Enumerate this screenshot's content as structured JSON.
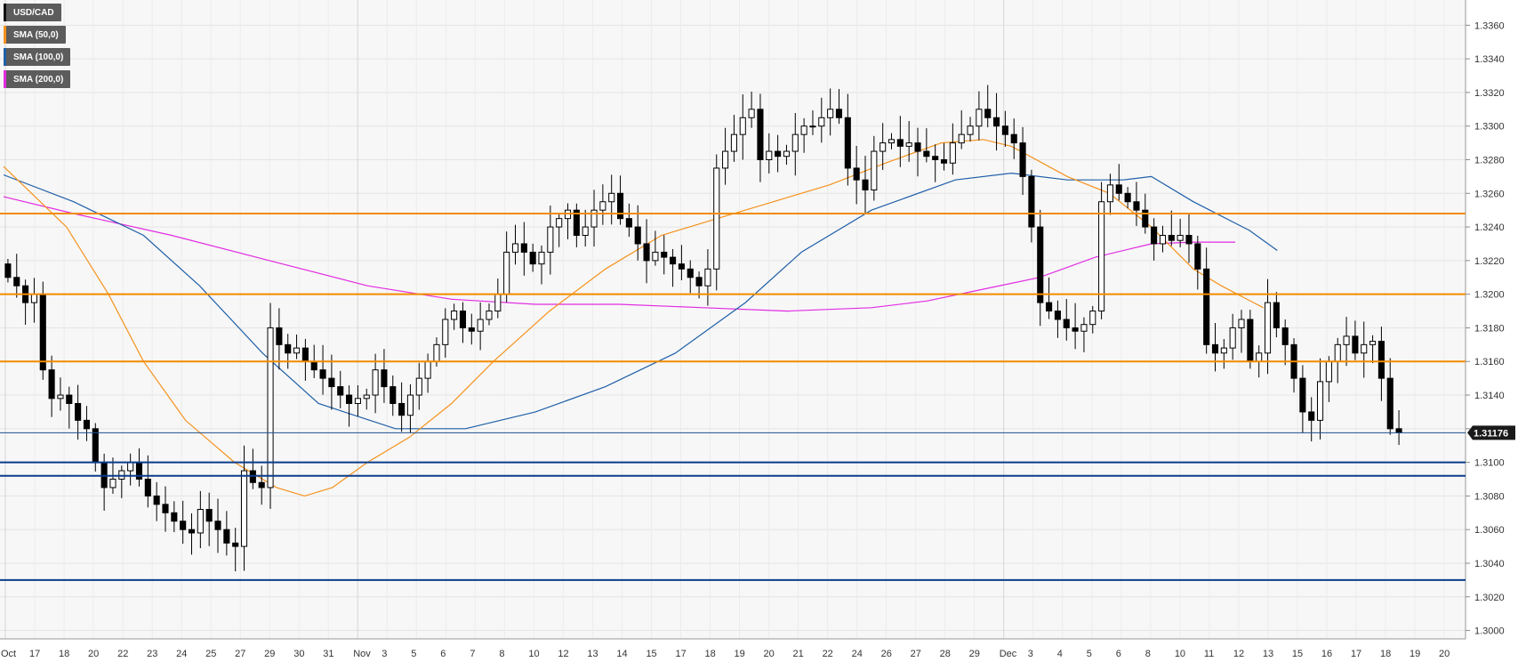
{
  "legend": [
    {
      "label": "USD/CAD",
      "color": "#000000"
    },
    {
      "label": "SMA (50,0)",
      "color": "#f5921e"
    },
    {
      "label": "SMA (100,0)",
      "color": "#1f5fa8"
    },
    {
      "label": "SMA (200,0)",
      "color": "#e22be2"
    }
  ],
  "current_price_label": "1.31176",
  "chart_data": {
    "type": "candlestick",
    "symbol": "USD/CAD",
    "ylim": [
      1.2995,
      1.3375
    ],
    "y_ticks": [
      "1.3000",
      "1.3020",
      "1.3040",
      "1.3060",
      "1.3080",
      "1.3100",
      "1.3120",
      "1.3140",
      "1.3160",
      "1.3180",
      "1.3200",
      "1.3220",
      "1.3240",
      "1.3260",
      "1.3280",
      "1.3300",
      "1.3320",
      "1.3340",
      "1.3360"
    ],
    "x_ticks": [
      "Oct",
      "17",
      "18",
      "20",
      "22",
      "23",
      "24",
      "25",
      "27",
      "29",
      "30",
      "31",
      "Nov",
      "3",
      "5",
      "6",
      "7",
      "8",
      "10",
      "12",
      "13",
      "14",
      "15",
      "17",
      "18",
      "19",
      "20",
      "21",
      "22",
      "24",
      "26",
      "27",
      "28",
      "29",
      "Dec",
      "3",
      "4",
      "5",
      "6",
      "8",
      "10",
      "11",
      "12",
      "13",
      "15",
      "16",
      "17",
      "18",
      "19",
      "20"
    ],
    "horizontal_levels": {
      "resistance": [
        1.3248,
        1.32,
        1.316
      ],
      "support": [
        1.31,
        1.3092,
        1.303
      ]
    },
    "current_price": 1.31176,
    "closes": [
      1.321,
      1.3205,
      1.3195,
      1.32,
      1.3155,
      1.3138,
      1.314,
      1.3135,
      1.3125,
      1.312,
      1.31,
      1.3085,
      1.309,
      1.3095,
      1.31,
      1.309,
      1.308,
      1.3075,
      1.307,
      1.3065,
      1.306,
      1.3058,
      1.3072,
      1.3065,
      1.306,
      1.3052,
      1.305,
      1.3095,
      1.3088,
      1.3085,
      1.318,
      1.317,
      1.3165,
      1.3168,
      1.316,
      1.3155,
      1.315,
      1.3145,
      1.314,
      1.3135,
      1.3138,
      1.314,
      1.3155,
      1.3145,
      1.3135,
      1.3128,
      1.314,
      1.315,
      1.316,
      1.317,
      1.3185,
      1.319,
      1.318,
      1.3178,
      1.3185,
      1.319,
      1.32,
      1.3225,
      1.323,
      1.3225,
      1.3218,
      1.3225,
      1.324,
      1.3245,
      1.325,
      1.3235,
      1.324,
      1.325,
      1.3255,
      1.326,
      1.3245,
      1.324,
      1.323,
      1.322,
      1.3225,
      1.3222,
      1.3218,
      1.3215,
      1.321,
      1.3205,
      1.3215,
      1.3275,
      1.3285,
      1.3295,
      1.3305,
      1.331,
      1.328,
      1.3285,
      1.3282,
      1.3285,
      1.3295,
      1.33,
      1.33,
      1.3305,
      1.331,
      1.3305,
      1.3275,
      1.3268,
      1.3262,
      1.3285,
      1.329,
      1.3292,
      1.3288,
      1.329,
      1.3285,
      1.3282,
      1.328,
      1.3278,
      1.329,
      1.3295,
      1.33,
      1.331,
      1.3305,
      1.33,
      1.3295,
      1.329,
      1.327,
      1.324,
      1.3195,
      1.319,
      1.3185,
      1.318,
      1.3178,
      1.3182,
      1.319,
      1.3255,
      1.3265,
      1.326,
      1.3255,
      1.325,
      1.324,
      1.323,
      1.3235,
      1.3232,
      1.3235,
      1.323,
      1.3215,
      1.317,
      1.3165,
      1.3168,
      1.318,
      1.3185,
      1.316,
      1.3165,
      1.3195,
      1.318,
      1.317,
      1.315,
      1.313,
      1.3125,
      1.3148,
      1.316,
      1.317,
      1.3175,
      1.3165,
      1.317,
      1.3172,
      1.315,
      1.312,
      1.31176
    ],
    "sma50": [
      [
        1.3276,
        0.0
      ],
      [
        1.326,
        0.02
      ],
      [
        1.324,
        0.045
      ],
      [
        1.32,
        0.075
      ],
      [
        1.316,
        0.1
      ],
      [
        1.3125,
        0.13
      ],
      [
        1.31,
        0.165
      ],
      [
        1.3085,
        0.195
      ],
      [
        1.308,
        0.215
      ],
      [
        1.3085,
        0.235
      ],
      [
        1.31,
        0.26
      ],
      [
        1.3115,
        0.29
      ],
      [
        1.3135,
        0.32
      ],
      [
        1.316,
        0.35
      ],
      [
        1.319,
        0.39
      ],
      [
        1.3215,
        0.43
      ],
      [
        1.3235,
        0.47
      ],
      [
        1.3245,
        0.51
      ],
      [
        1.3255,
        0.55
      ],
      [
        1.3265,
        0.59
      ],
      [
        1.3278,
        0.63
      ],
      [
        1.329,
        0.67
      ],
      [
        1.3292,
        0.7
      ],
      [
        1.3288,
        0.72
      ],
      [
        1.327,
        0.76
      ],
      [
        1.326,
        0.79
      ],
      [
        1.324,
        0.82
      ],
      [
        1.3215,
        0.85
      ],
      [
        1.3205,
        0.87
      ],
      [
        1.3192,
        0.9
      ]
    ],
    "sma100": [
      [
        1.3271,
        0.0
      ],
      [
        1.3255,
        0.05
      ],
      [
        1.3235,
        0.1
      ],
      [
        1.3205,
        0.14
      ],
      [
        1.3165,
        0.185
      ],
      [
        1.3135,
        0.225
      ],
      [
        1.312,
        0.28
      ],
      [
        1.312,
        0.33
      ],
      [
        1.313,
        0.38
      ],
      [
        1.3145,
        0.43
      ],
      [
        1.3165,
        0.48
      ],
      [
        1.3195,
        0.53
      ],
      [
        1.3225,
        0.57
      ],
      [
        1.325,
        0.62
      ],
      [
        1.3268,
        0.68
      ],
      [
        1.3272,
        0.72
      ],
      [
        1.3268,
        0.76
      ],
      [
        1.3268,
        0.8
      ],
      [
        1.327,
        0.82
      ],
      [
        1.3255,
        0.85
      ],
      [
        1.3238,
        0.89
      ],
      [
        1.3226,
        0.91
      ]
    ],
    "sma200": [
      [
        1.3258,
        0.0
      ],
      [
        1.3248,
        0.05
      ],
      [
        1.3235,
        0.12
      ],
      [
        1.322,
        0.19
      ],
      [
        1.3205,
        0.26
      ],
      [
        1.3197,
        0.32
      ],
      [
        1.3194,
        0.38
      ],
      [
        1.3194,
        0.44
      ],
      [
        1.3192,
        0.5
      ],
      [
        1.319,
        0.56
      ],
      [
        1.3192,
        0.62
      ],
      [
        1.3196,
        0.66
      ],
      [
        1.3203,
        0.7
      ],
      [
        1.321,
        0.74
      ],
      [
        1.3222,
        0.78
      ],
      [
        1.323,
        0.82
      ],
      [
        1.3231,
        0.85
      ],
      [
        1.3231,
        0.88
      ]
    ]
  }
}
